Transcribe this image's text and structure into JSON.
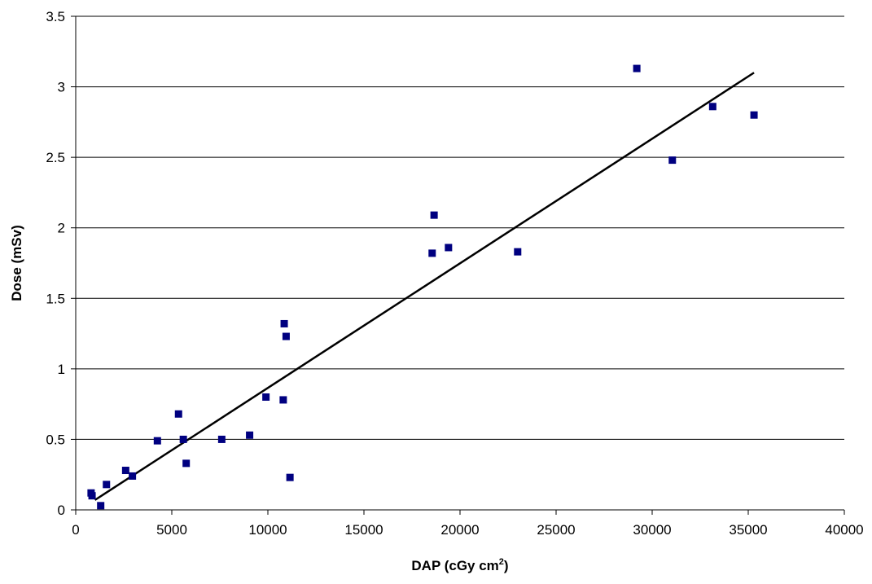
{
  "chart_data": {
    "type": "scatter",
    "xlabel": "DAP (cGy cm",
    "xlabel_superscript": "2",
    "xlabel_suffix": ")",
    "ylabel": "Dose (mSv)",
    "xlim": [
      0,
      40000
    ],
    "ylim": [
      0,
      3.5
    ],
    "x_ticks": [
      0,
      5000,
      10000,
      15000,
      20000,
      25000,
      30000,
      35000,
      40000
    ],
    "x_tick_labels": [
      "0",
      "5000",
      "10000",
      "15000",
      "20000",
      "25000",
      "30000",
      "35000",
      "40000"
    ],
    "y_ticks": [
      0,
      0.5,
      1,
      1.5,
      2,
      2.5,
      3,
      3.5
    ],
    "y_tick_labels": [
      "0",
      "0.5",
      "1",
      "1.5",
      "2",
      "2.5",
      "3",
      "3.5"
    ],
    "grid": "horizontal",
    "legend": "none",
    "marker_color": "#000080",
    "series": [
      {
        "points": [
          {
            "x": 800,
            "y": 0.12
          },
          {
            "x": 850,
            "y": 0.1
          },
          {
            "x": 1300,
            "y": 0.03
          },
          {
            "x": 1600,
            "y": 0.18
          },
          {
            "x": 2600,
            "y": 0.28
          },
          {
            "x": 2950,
            "y": 0.24
          },
          {
            "x": 4250,
            "y": 0.49
          },
          {
            "x": 5350,
            "y": 0.68
          },
          {
            "x": 5600,
            "y": 0.5
          },
          {
            "x": 5750,
            "y": 0.33
          },
          {
            "x": 7600,
            "y": 0.5
          },
          {
            "x": 9050,
            "y": 0.53
          },
          {
            "x": 9900,
            "y": 0.8
          },
          {
            "x": 10800,
            "y": 0.78
          },
          {
            "x": 10850,
            "y": 1.32
          },
          {
            "x": 10950,
            "y": 1.23
          },
          {
            "x": 11150,
            "y": 0.23
          },
          {
            "x": 18550,
            "y": 1.82
          },
          {
            "x": 18650,
            "y": 2.09
          },
          {
            "x": 19400,
            "y": 1.86
          },
          {
            "x": 23000,
            "y": 1.83
          },
          {
            "x": 29200,
            "y": 3.13
          },
          {
            "x": 31050,
            "y": 2.48
          },
          {
            "x": 33150,
            "y": 2.86
          },
          {
            "x": 35300,
            "y": 2.8
          }
        ]
      }
    ],
    "trendline": {
      "x": [
        1000,
        35300
      ],
      "y": [
        0.07,
        3.1
      ],
      "color": "#000000"
    }
  }
}
